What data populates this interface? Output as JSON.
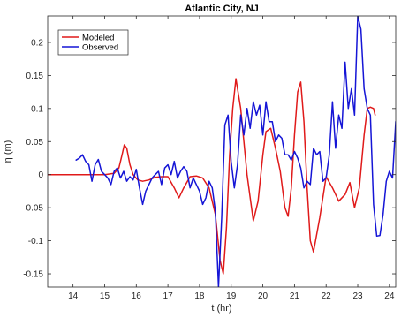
{
  "chart_data": {
    "type": "line",
    "title": "Atlantic City, NJ",
    "xlabel": "t (hr)",
    "ylabel": "η (m)",
    "xlim": [
      13.2,
      24.2
    ],
    "ylim": [
      -0.17,
      0.24
    ],
    "xticks": [
      14,
      15,
      16,
      17,
      18,
      19,
      20,
      21,
      22,
      23,
      24
    ],
    "yticks": [
      -0.15,
      -0.1,
      -0.05,
      0,
      0.05,
      0.1,
      0.15,
      0.2
    ],
    "ytick_labels": [
      "-0.15",
      "-0.1",
      "-0.05",
      "0",
      "0.05",
      "0.1",
      "0.15",
      "0.2"
    ],
    "grid": false,
    "legend_position": "top-left",
    "series": [
      {
        "name": "Modeled",
        "color": "#e01a1a",
        "x": [
          13.2,
          14.0,
          15.0,
          15.3,
          15.45,
          15.55,
          15.62,
          15.7,
          15.8,
          15.9,
          16.05,
          16.2,
          16.4,
          16.6,
          16.8,
          17.0,
          17.2,
          17.35,
          17.5,
          17.7,
          17.9,
          18.1,
          18.3,
          18.5,
          18.65,
          18.75,
          18.85,
          18.95,
          19.05,
          19.15,
          19.3,
          19.5,
          19.7,
          19.85,
          20.0,
          20.1,
          20.25,
          20.4,
          20.55,
          20.7,
          20.8,
          20.9,
          21.0,
          21.1,
          21.2,
          21.3,
          21.4,
          21.5,
          21.6,
          21.8,
          22.0,
          22.2,
          22.4,
          22.6,
          22.75,
          22.9,
          23.05,
          23.2,
          23.3,
          23.4,
          23.5,
          23.55
        ],
        "y": [
          0,
          0,
          0,
          0.002,
          0.01,
          0.03,
          0.045,
          0.04,
          0.015,
          0.0,
          -0.008,
          -0.01,
          -0.008,
          -0.004,
          -0.003,
          -0.003,
          -0.02,
          -0.035,
          -0.02,
          -0.003,
          -0.002,
          -0.005,
          -0.02,
          -0.06,
          -0.13,
          -0.15,
          -0.08,
          0.03,
          0.1,
          0.145,
          0.1,
          0.0,
          -0.07,
          -0.04,
          0.03,
          0.065,
          0.07,
          0.04,
          0.005,
          -0.05,
          -0.063,
          -0.02,
          0.06,
          0.125,
          0.14,
          0.08,
          -0.02,
          -0.1,
          -0.117,
          -0.065,
          -0.003,
          -0.02,
          -0.04,
          -0.03,
          -0.012,
          -0.05,
          -0.02,
          0.06,
          0.1,
          0.102,
          0.1,
          0.09
        ]
      },
      {
        "name": "Observed",
        "color": "#1515d6",
        "x": [
          14.1,
          14.2,
          14.3,
          14.4,
          14.5,
          14.6,
          14.7,
          14.8,
          14.9,
          15.0,
          15.1,
          15.2,
          15.3,
          15.4,
          15.5,
          15.6,
          15.7,
          15.8,
          15.9,
          16.0,
          16.1,
          16.2,
          16.3,
          16.4,
          16.5,
          16.6,
          16.7,
          16.8,
          16.9,
          17.0,
          17.1,
          17.2,
          17.3,
          17.4,
          17.5,
          17.6,
          17.7,
          17.8,
          17.9,
          18.0,
          18.1,
          18.2,
          18.3,
          18.4,
          18.5,
          18.6,
          18.7,
          18.8,
          18.9,
          19.0,
          19.1,
          19.2,
          19.3,
          19.4,
          19.5,
          19.6,
          19.7,
          19.8,
          19.9,
          20.0,
          20.1,
          20.2,
          20.3,
          20.4,
          20.5,
          20.6,
          20.7,
          20.8,
          20.9,
          21.0,
          21.1,
          21.2,
          21.3,
          21.4,
          21.5,
          21.6,
          21.7,
          21.8,
          21.9,
          22.0,
          22.1,
          22.2,
          22.3,
          22.4,
          22.5,
          22.6,
          22.7,
          22.8,
          22.9,
          23.0,
          23.1,
          23.2,
          23.3,
          23.4,
          23.5,
          23.6,
          23.7,
          23.8,
          23.9,
          24.0,
          24.1,
          24.2
        ],
        "y": [
          0.022,
          0.025,
          0.03,
          0.02,
          0.015,
          -0.01,
          0.015,
          0.023,
          0.005,
          0.0,
          -0.005,
          -0.015,
          0.005,
          0.01,
          -0.005,
          0.005,
          -0.01,
          -0.003,
          -0.008,
          0.008,
          -0.02,
          -0.045,
          -0.025,
          -0.015,
          -0.005,
          0.0,
          0.005,
          -0.015,
          0.01,
          0.015,
          0.0,
          0.02,
          -0.005,
          0.005,
          0.012,
          0.005,
          -0.02,
          -0.005,
          -0.015,
          -0.025,
          -0.045,
          -0.035,
          -0.01,
          -0.02,
          -0.055,
          -0.17,
          -0.065,
          0.075,
          0.09,
          0.02,
          -0.02,
          0.015,
          0.09,
          0.06,
          0.1,
          0.07,
          0.11,
          0.09,
          0.105,
          0.06,
          0.11,
          0.08,
          0.08,
          0.05,
          0.06,
          0.055,
          0.03,
          0.03,
          0.022,
          0.035,
          0.025,
          0.01,
          -0.02,
          -0.01,
          -0.015,
          0.04,
          0.03,
          0.035,
          -0.01,
          -0.005,
          0.03,
          0.11,
          0.04,
          0.09,
          0.07,
          0.17,
          0.1,
          0.13,
          0.09,
          0.24,
          0.22,
          0.13,
          0.1,
          0.09,
          -0.045,
          -0.093,
          -0.092,
          -0.06,
          -0.01,
          0.005,
          -0.005,
          0.08
        ]
      }
    ]
  }
}
